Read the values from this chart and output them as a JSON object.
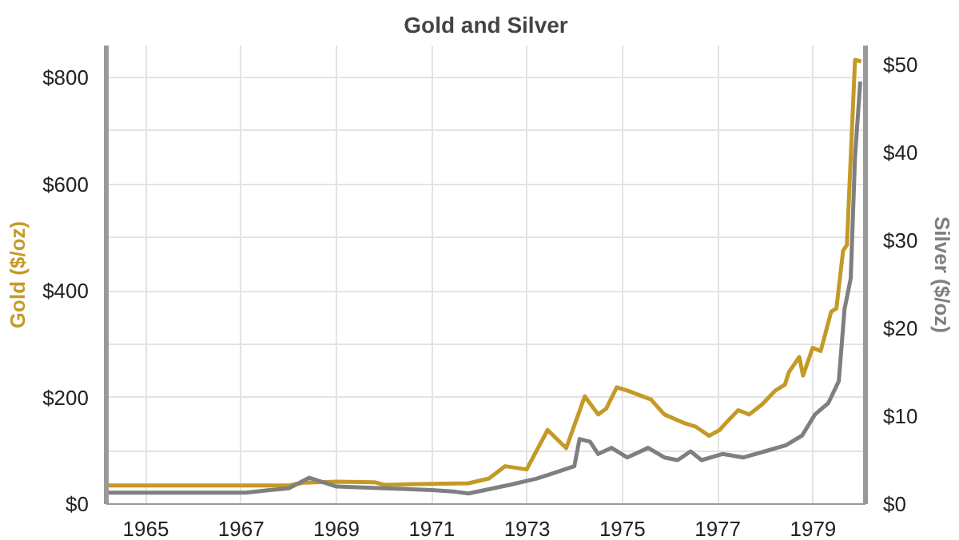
{
  "chart_data": {
    "type": "line",
    "title": "Gold and Silver",
    "ylabel": "Gold ($/oz)",
    "y2label": "Silver ($/oz)",
    "xlim": [
      1964.17,
      1980.1
    ],
    "ylim": [
      0,
      860
    ],
    "y2lim": [
      0,
      52.2
    ],
    "xticks": [
      1965,
      1967,
      1969,
      1971,
      1973,
      1975,
      1977,
      1979
    ],
    "yticks": [
      {
        "value": 0,
        "label": "$0"
      },
      {
        "value": 100,
        "label": null
      },
      {
        "value": 200,
        "label": "$200"
      },
      {
        "value": 300,
        "label": null
      },
      {
        "value": 400,
        "label": "$400"
      },
      {
        "value": 500,
        "label": null
      },
      {
        "value": 600,
        "label": "$600"
      },
      {
        "value": 700,
        "label": null
      },
      {
        "value": 800,
        "label": "$800"
      }
    ],
    "y2ticks": [
      {
        "value": 0,
        "label": "$0"
      },
      {
        "value": 10,
        "label": "$10"
      },
      {
        "value": 20,
        "label": "$20"
      },
      {
        "value": 30,
        "label": "$30"
      },
      {
        "value": 40,
        "label": "$40"
      },
      {
        "value": 50,
        "label": "$50"
      }
    ],
    "grid": true,
    "series": [
      {
        "color": "#c49a27",
        "axis": "y",
        "x": [
          1964.2,
          1968.0,
          1968.3,
          1969.0,
          1969.8,
          1970.0,
          1971.0,
          1971.77,
          1972.2,
          1972.54,
          1972.99,
          1973.43,
          1973.82,
          1974.21,
          1974.49,
          1974.66,
          1974.88,
          1975.1,
          1975.6,
          1975.88,
          1976.32,
          1976.54,
          1976.82,
          1977.04,
          1977.21,
          1977.43,
          1977.66,
          1977.93,
          1978.21,
          1978.41,
          1978.49,
          1978.71,
          1978.79,
          1978.99,
          1979.16,
          1979.38,
          1979.49,
          1979.63,
          1979.71,
          1979.88,
          1980.01
        ],
        "values": [
          35,
          35,
          40,
          42,
          41,
          36,
          38,
          39,
          48,
          71,
          65,
          139,
          105,
          202,
          168,
          179,
          219,
          213,
          196,
          168,
          151,
          145,
          128,
          139,
          156,
          176,
          168,
          187,
          213,
          224,
          247,
          276,
          241,
          293,
          287,
          361,
          367,
          475,
          486,
          833,
          830
        ]
      },
      {
        "color": "#7f7f7f",
        "axis": "y2",
        "x": [
          1964.2,
          1967.1,
          1967.6,
          1968.0,
          1968.43,
          1969.0,
          1970.0,
          1971.0,
          1971.5,
          1971.77,
          1972.65,
          1973.2,
          1973.6,
          1973.99,
          1974.1,
          1974.32,
          1974.49,
          1974.77,
          1975.1,
          1975.54,
          1975.88,
          1976.16,
          1976.43,
          1976.66,
          1977.1,
          1977.54,
          1977.99,
          1978.43,
          1978.77,
          1979.04,
          1979.32,
          1979.54,
          1979.66,
          1979.79,
          1979.88,
          1979.99
        ],
        "values": [
          1.3,
          1.3,
          1.6,
          1.8,
          3.0,
          2.0,
          1.8,
          1.6,
          1.4,
          1.2,
          2.2,
          2.9,
          3.6,
          4.3,
          7.4,
          7.1,
          5.7,
          6.4,
          5.3,
          6.4,
          5.3,
          5.0,
          6.0,
          5.0,
          5.7,
          5.3,
          6.0,
          6.7,
          7.8,
          10.2,
          11.5,
          14.0,
          22.2,
          25.7,
          39.5,
          48.1
        ]
      }
    ]
  }
}
